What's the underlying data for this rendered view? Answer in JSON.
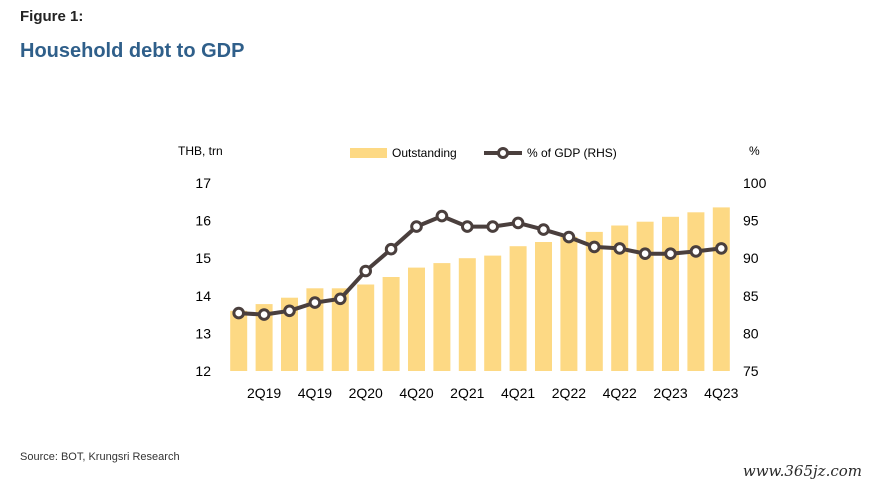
{
  "header": {
    "figure_label": "Figure 1:",
    "title": "Household debt to GDP"
  },
  "footer": {
    "source": "Source: BOT, Krungsri Research",
    "watermark": "www.365jz.com"
  },
  "colors": {
    "bar": "#fdd984",
    "line": "#4a3f3d",
    "marker_fill": "#ffffff",
    "title": "#2f5f8a"
  },
  "chart_data": {
    "type": "bar",
    "left_unit": "THB, trn",
    "right_unit": "%",
    "categories": [
      "1Q19",
      "2Q19",
      "3Q19",
      "4Q19",
      "1Q20",
      "2Q20",
      "3Q20",
      "4Q20",
      "1Q21",
      "2Q21",
      "3Q21",
      "4Q21",
      "1Q22",
      "2Q22",
      "3Q22",
      "4Q22",
      "1Q23",
      "2Q23",
      "3Q23",
      "4Q23"
    ],
    "tick_labels": [
      "2Q19",
      "4Q19",
      "2Q20",
      "4Q20",
      "2Q21",
      "4Q21",
      "2Q22",
      "4Q22",
      "2Q23",
      "4Q23"
    ],
    "y_left_ticks": [
      "12",
      "13",
      "14",
      "15",
      "16",
      "17"
    ],
    "y_right_ticks": [
      "75",
      "80",
      "85",
      "90",
      "95",
      "100"
    ],
    "ylim_left": [
      12,
      17
    ],
    "ylim_right": [
      75,
      100
    ],
    "legend": {
      "position": "top",
      "bar_label": "Outstanding",
      "line_label": "% of GDP (RHS)"
    },
    "series": [
      {
        "name": "Outstanding",
        "type": "bar",
        "axis": "left",
        "values": [
          13.6,
          13.78,
          13.95,
          14.2,
          14.2,
          14.3,
          14.5,
          14.75,
          14.87,
          15.0,
          15.07,
          15.32,
          15.43,
          15.57,
          15.7,
          15.87,
          15.97,
          16.1,
          16.22,
          16.35
        ]
      },
      {
        "name": "% of GDP (RHS)",
        "type": "line",
        "axis": "right",
        "values": [
          82.7,
          82.5,
          83.0,
          84.1,
          84.6,
          88.3,
          91.2,
          94.2,
          95.6,
          94.2,
          94.2,
          94.7,
          93.8,
          92.8,
          91.5,
          91.3,
          90.6,
          90.6,
          90.9,
          91.3
        ]
      }
    ]
  }
}
